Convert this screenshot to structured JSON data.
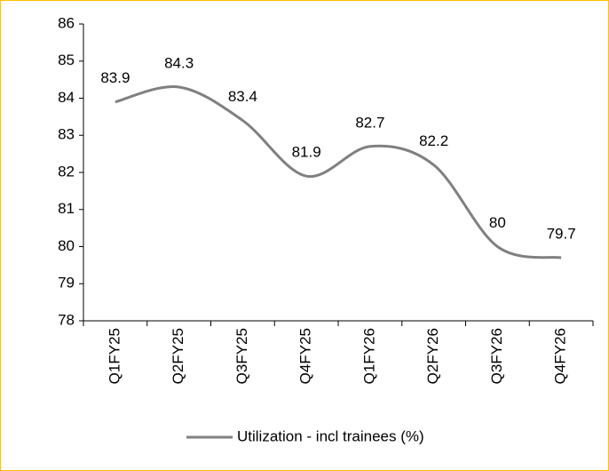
{
  "chart_data": {
    "type": "line",
    "categories": [
      "Q1FY25",
      "Q2FY25",
      "Q3FY25",
      "Q4FY25",
      "Q1FY26",
      "Q2FY26",
      "Q3FY26",
      "Q4FY26"
    ],
    "series": [
      {
        "name": "Utilization - incl trainees (%)",
        "color": "#808080",
        "values": [
          83.9,
          84.3,
          83.4,
          81.9,
          82.7,
          82.2,
          80,
          79.7
        ]
      }
    ],
    "ylim": [
      78,
      86
    ],
    "yticks": [
      78,
      79,
      80,
      81,
      82,
      83,
      84,
      85,
      86
    ],
    "smooth": true,
    "legend": "bottom"
  }
}
